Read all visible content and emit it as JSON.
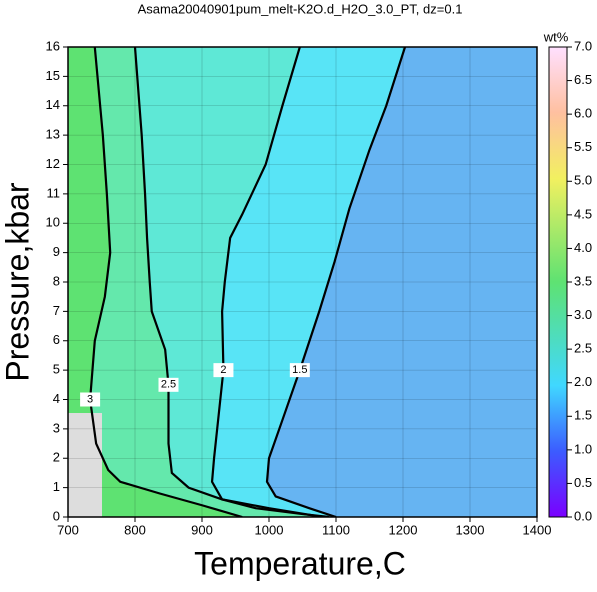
{
  "chart_data": {
    "type": "contour",
    "title": "Asama20040901pum_melt-K2O.d_H2O_3.0_PT, dz=0.1",
    "x_label": "Temperature,C",
    "y_label": "Pressure,kbar",
    "xlim": [
      700,
      1400
    ],
    "xticks": [
      700,
      800,
      900,
      1000,
      1100,
      1200,
      1300,
      1400
    ],
    "ylim": [
      0,
      16
    ],
    "yticks": [
      0,
      1,
      2,
      3,
      4,
      5,
      6,
      7,
      8,
      9,
      10,
      11,
      12,
      13,
      14,
      15,
      16
    ],
    "background_color": "#66b4f2",
    "contours": [
      {
        "level": 1.5,
        "color": "#58e4f6",
        "x": [
          1203,
          1175,
          1150,
          1120,
          1098,
          1075,
          1046,
          1020,
          1000,
          997,
          1010,
          1060,
          1100
        ],
        "y": [
          16,
          14,
          12.5,
          10.5,
          8.7,
          7,
          5,
          3.3,
          2,
          1.2,
          0.7,
          0.3,
          0
        ]
      },
      {
        "level": 2,
        "color": "#5ee8d6",
        "x": [
          1046,
          1020,
          995,
          960,
          942,
          934,
          930,
          932,
          925,
          918,
          915,
          930,
          980,
          1050,
          1090
        ],
        "y": [
          16,
          14,
          12,
          10.3,
          9.5,
          8,
          7,
          5,
          3.5,
          2,
          1.2,
          0.6,
          0.3,
          0.1,
          0
        ]
      },
      {
        "level": 2.5,
        "color": "#64e8ac",
        "x": [
          800,
          810,
          815,
          818,
          822,
          825,
          845,
          850,
          850,
          855,
          880,
          930,
          1000,
          1080
        ],
        "y": [
          16,
          13,
          11,
          9.5,
          8,
          7,
          5.7,
          4.5,
          2.5,
          1.5,
          1,
          0.6,
          0.3,
          0
        ]
      },
      {
        "level": 3,
        "color": "#5ee272",
        "x": [
          740,
          752,
          758,
          763,
          755,
          740,
          733,
          742,
          760,
          778,
          837,
          900,
          960
        ],
        "y": [
          16,
          13,
          11,
          9,
          7.5,
          6,
          4,
          2.5,
          1.6,
          1.2,
          0.8,
          0.4,
          0
        ]
      }
    ],
    "colorbar": {
      "label": "wt%",
      "lim": [
        0,
        7
      ],
      "ticks": [
        {
          "value": 0,
          "label": "0.0"
        },
        0.5,
        {
          "value": 1,
          "label": "1.0"
        },
        1.5,
        {
          "value": 2,
          "label": "2.0"
        },
        2.5,
        {
          "value": 3,
          "label": "3.0"
        },
        3.5,
        {
          "value": 4,
          "label": "4.0"
        },
        4.5,
        {
          "value": 5,
          "label": "5.0"
        },
        5.5,
        {
          "value": 6,
          "label": "6.0"
        },
        6.5,
        {
          "value": 7,
          "label": "7.0"
        }
      ]
    }
  }
}
